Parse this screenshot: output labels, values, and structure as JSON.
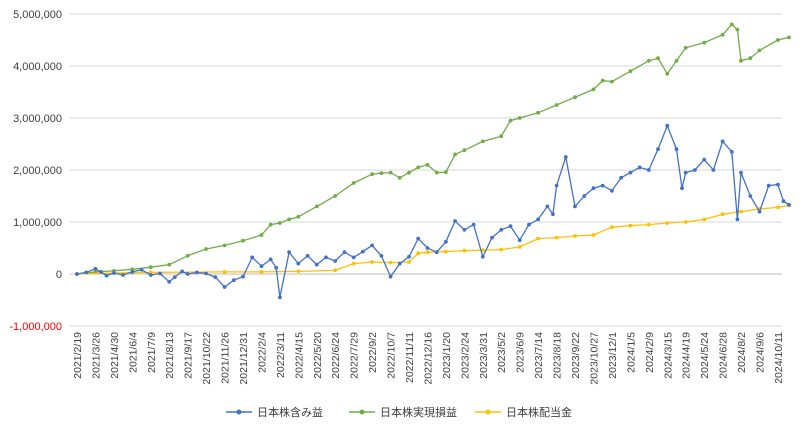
{
  "chart_data": {
    "type": "line",
    "title": "",
    "xlabel": "",
    "ylabel": "",
    "ylim": [
      -1000000,
      5000000
    ],
    "y_ticks": [
      {
        "value": 5000000,
        "label": "5,000,000"
      },
      {
        "value": 4000000,
        "label": "4,000,000"
      },
      {
        "value": 3000000,
        "label": "3,000,000"
      },
      {
        "value": 2000000,
        "label": "2,000,000"
      },
      {
        "value": 1000000,
        "label": "1,000,000"
      },
      {
        "value": 0,
        "label": "0"
      },
      {
        "value": -1000000,
        "label": "-1,000,000"
      }
    ],
    "negative_label_color": "#ff0000",
    "grid": true,
    "legend_position": "bottom",
    "x_labels": [
      "2021/2/19",
      "2021/3/26",
      "2021/4/30",
      "2021/6/4",
      "2021/7/9",
      "2021/8/13",
      "2021/9/17",
      "2021/10/22",
      "2021/11/26",
      "2021/12/31",
      "2022/2/4",
      "2022/3/11",
      "2022/4/15",
      "2022/5/20",
      "2022/6/24",
      "2022/7/29",
      "2022/9/2",
      "2022/10/7",
      "2022/11/11",
      "2022/12/16",
      "2023/1/20",
      "2023/2/24",
      "2023/3/31",
      "2023/5/2",
      "2023/6/9",
      "2023/7/14",
      "2023/8/18",
      "2023/9/22",
      "2023/10/27",
      "2023/12/1",
      "2024/1/5",
      "2024/2/9",
      "2024/3/15",
      "2024/4/19",
      "2024/5/24",
      "2024/6/28",
      "2024/8/2",
      "2024/9/6",
      "2024/10/11"
    ],
    "series": [
      {
        "name": "日本株含み益",
        "color": "#4472c4",
        "points": [
          [
            0,
            0
          ],
          [
            0.5,
            30000
          ],
          [
            1,
            100000
          ],
          [
            1.3,
            40000
          ],
          [
            1.6,
            -30000
          ],
          [
            2,
            20000
          ],
          [
            2.5,
            -20000
          ],
          [
            3,
            40000
          ],
          [
            3.5,
            80000
          ],
          [
            4,
            -20000
          ],
          [
            4.5,
            10000
          ],
          [
            5,
            -150000
          ],
          [
            5.3,
            -60000
          ],
          [
            5.7,
            50000
          ],
          [
            6,
            0
          ],
          [
            6.5,
            30000
          ],
          [
            7,
            10000
          ],
          [
            7.5,
            -60000
          ],
          [
            8,
            -250000
          ],
          [
            8.5,
            -120000
          ],
          [
            9,
            -50000
          ],
          [
            9.5,
            320000
          ],
          [
            10,
            150000
          ],
          [
            10.5,
            280000
          ],
          [
            10.8,
            120000
          ],
          [
            11,
            -450000
          ],
          [
            11.5,
            420000
          ],
          [
            12,
            200000
          ],
          [
            12.5,
            350000
          ],
          [
            13,
            180000
          ],
          [
            13.5,
            320000
          ],
          [
            14,
            250000
          ],
          [
            14.5,
            420000
          ],
          [
            15,
            320000
          ],
          [
            15.5,
            430000
          ],
          [
            16,
            550000
          ],
          [
            16.5,
            350000
          ],
          [
            17,
            -50000
          ],
          [
            17.5,
            200000
          ],
          [
            18,
            330000
          ],
          [
            18.5,
            680000
          ],
          [
            19,
            500000
          ],
          [
            19.5,
            420000
          ],
          [
            20,
            620000
          ],
          [
            20.5,
            1020000
          ],
          [
            21,
            850000
          ],
          [
            21.5,
            950000
          ],
          [
            22,
            330000
          ],
          [
            22.5,
            700000
          ],
          [
            23,
            850000
          ],
          [
            23.5,
            920000
          ],
          [
            24,
            650000
          ],
          [
            24.5,
            950000
          ],
          [
            25,
            1050000
          ],
          [
            25.5,
            1300000
          ],
          [
            25.8,
            1150000
          ],
          [
            26,
            1700000
          ],
          [
            26.5,
            2250000
          ],
          [
            27,
            1300000
          ],
          [
            27.5,
            1500000
          ],
          [
            28,
            1650000
          ],
          [
            28.5,
            1700000
          ],
          [
            29,
            1600000
          ],
          [
            29.5,
            1850000
          ],
          [
            30,
            1950000
          ],
          [
            30.5,
            2050000
          ],
          [
            31,
            2000000
          ],
          [
            31.5,
            2400000
          ],
          [
            32,
            2850000
          ],
          [
            32.5,
            2400000
          ],
          [
            32.8,
            1650000
          ],
          [
            33,
            1950000
          ],
          [
            33.5,
            2000000
          ],
          [
            34,
            2200000
          ],
          [
            34.5,
            2000000
          ],
          [
            35,
            2550000
          ],
          [
            35.5,
            2350000
          ],
          [
            35.8,
            1050000
          ],
          [
            36,
            1950000
          ],
          [
            36.5,
            1500000
          ],
          [
            37,
            1200000
          ],
          [
            37.5,
            1700000
          ],
          [
            38,
            1720000
          ],
          [
            38.3,
            1400000
          ],
          [
            38.6,
            1330000
          ]
        ]
      },
      {
        "name": "日本株実現損益",
        "color": "#70ad47",
        "points": [
          [
            0,
            0
          ],
          [
            1,
            40000
          ],
          [
            2,
            60000
          ],
          [
            3,
            90000
          ],
          [
            4,
            130000
          ],
          [
            5,
            180000
          ],
          [
            6,
            350000
          ],
          [
            7,
            480000
          ],
          [
            8,
            550000
          ],
          [
            9,
            640000
          ],
          [
            10,
            750000
          ],
          [
            10.5,
            950000
          ],
          [
            11,
            980000
          ],
          [
            11.5,
            1050000
          ],
          [
            12,
            1100000
          ],
          [
            13,
            1300000
          ],
          [
            14,
            1500000
          ],
          [
            15,
            1750000
          ],
          [
            16,
            1920000
          ],
          [
            16.5,
            1940000
          ],
          [
            17,
            1950000
          ],
          [
            17.5,
            1850000
          ],
          [
            18,
            1950000
          ],
          [
            18.5,
            2050000
          ],
          [
            19,
            2100000
          ],
          [
            19.5,
            1950000
          ],
          [
            20,
            1960000
          ],
          [
            20.5,
            2300000
          ],
          [
            21,
            2380000
          ],
          [
            22,
            2550000
          ],
          [
            23,
            2650000
          ],
          [
            23.5,
            2950000
          ],
          [
            24,
            3000000
          ],
          [
            25,
            3100000
          ],
          [
            26,
            3250000
          ],
          [
            27,
            3400000
          ],
          [
            28,
            3550000
          ],
          [
            28.5,
            3720000
          ],
          [
            29,
            3700000
          ],
          [
            30,
            3900000
          ],
          [
            31,
            4100000
          ],
          [
            31.5,
            4150000
          ],
          [
            32,
            3850000
          ],
          [
            32.5,
            4100000
          ],
          [
            33,
            4350000
          ],
          [
            34,
            4450000
          ],
          [
            35,
            4600000
          ],
          [
            35.5,
            4800000
          ],
          [
            35.8,
            4700000
          ],
          [
            36,
            4100000
          ],
          [
            36.5,
            4150000
          ],
          [
            37,
            4300000
          ],
          [
            38,
            4500000
          ],
          [
            38.6,
            4550000
          ]
        ]
      },
      {
        "name": "日本株配当金",
        "color": "#ffc000",
        "points": [
          [
            0,
            0
          ],
          [
            2,
            20000
          ],
          [
            4,
            30000
          ],
          [
            8,
            40000
          ],
          [
            10,
            40000
          ],
          [
            12,
            50000
          ],
          [
            14,
            70000
          ],
          [
            15,
            200000
          ],
          [
            16,
            230000
          ],
          [
            17,
            220000
          ],
          [
            18,
            230000
          ],
          [
            18.5,
            400000
          ],
          [
            19,
            420000
          ],
          [
            20,
            430000
          ],
          [
            21,
            450000
          ],
          [
            22,
            460000
          ],
          [
            23,
            470000
          ],
          [
            24,
            520000
          ],
          [
            25,
            680000
          ],
          [
            26,
            700000
          ],
          [
            27,
            730000
          ],
          [
            28,
            750000
          ],
          [
            29,
            900000
          ],
          [
            30,
            930000
          ],
          [
            31,
            950000
          ],
          [
            32,
            980000
          ],
          [
            33,
            1000000
          ],
          [
            34,
            1050000
          ],
          [
            35,
            1150000
          ],
          [
            36,
            1200000
          ],
          [
            37,
            1250000
          ],
          [
            38,
            1280000
          ],
          [
            38.6,
            1320000
          ]
        ]
      }
    ]
  }
}
